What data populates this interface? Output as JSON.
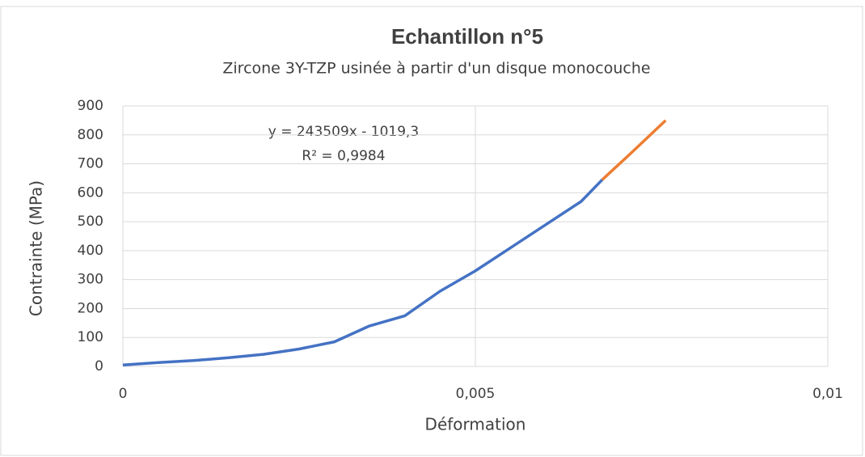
{
  "chart_data": {
    "type": "line",
    "title": "Echantillon n°5",
    "subtitle": "Zircone 3Y-TZP usinée à partir d'un disque monocouche",
    "x_label": "Déformation",
    "y_label": "Contrainte (MPa)",
    "annotations": [
      "y = 243509x - 1019,3",
      "R² = 0,9984"
    ],
    "xlim": [
      0,
      0.01
    ],
    "xticks": [
      0,
      {
        "value": 0.005,
        "label": "0,005"
      },
      {
        "value": 0.01,
        "label": "0,01"
      }
    ],
    "ylim": [
      0,
      900
    ],
    "yticks": [
      0,
      100,
      200,
      300,
      400,
      500,
      600,
      700,
      800,
      900
    ],
    "grid": true,
    "series": [
      {
        "color": "#4472c4",
        "x": [
          0,
          0.0005,
          0.001,
          0.0015,
          0.002,
          0.0025,
          0.003,
          0.0035,
          0.004,
          0.0045,
          0.005,
          0.0055,
          0.006,
          0.0065,
          0.0068
        ],
        "values": [
          5,
          13,
          20,
          30,
          42,
          60,
          85,
          140,
          175,
          260,
          330,
          410,
          490,
          570,
          645
        ]
      },
      {
        "color": "#ed7d31",
        "x": [
          0.0068,
          0.0072,
          0.0077
        ],
        "values": [
          645,
          735,
          850
        ]
      }
    ]
  }
}
